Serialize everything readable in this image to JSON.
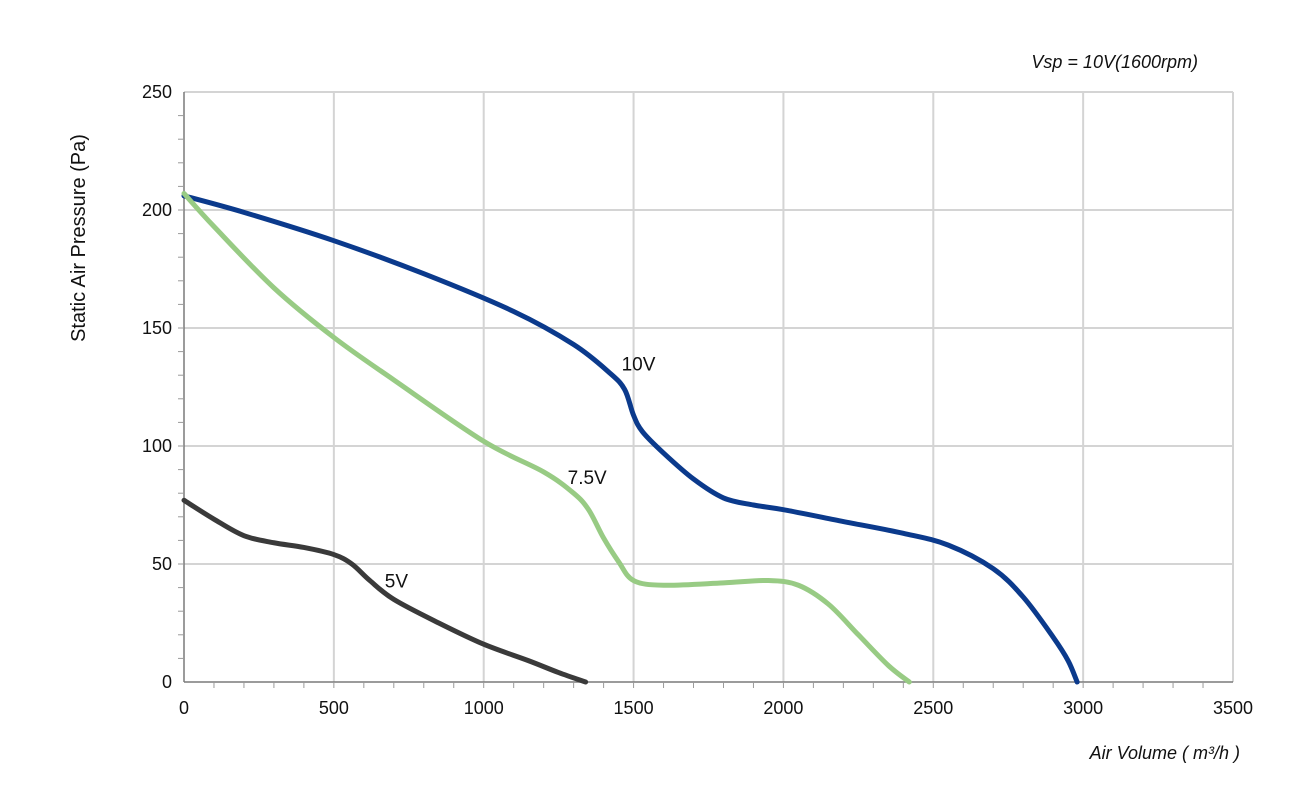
{
  "chart_data": {
    "type": "line",
    "annotation": "Vsp = 10V(1600rpm)",
    "xlabel": "Air Volume ( m³/h )",
    "ylabel": "Static Air Pressure  (Pa)",
    "xlim": [
      0,
      3500
    ],
    "ylim": [
      0,
      250
    ],
    "x_ticks": [
      0,
      500,
      1000,
      1500,
      2000,
      2500,
      3000,
      3500
    ],
    "y_ticks": [
      0,
      50,
      100,
      150,
      200,
      250
    ],
    "grid": true,
    "legend": "none",
    "series": [
      {
        "name": "10V",
        "color": "#0b3a8c",
        "x": [
          0,
          200,
          500,
          800,
          1100,
          1300,
          1420,
          1470,
          1500,
          1530,
          1600,
          1700,
          1800,
          1900,
          2000,
          2200,
          2400,
          2550,
          2700,
          2800,
          2900,
          2950,
          2980
        ],
        "y": [
          206,
          199,
          187,
          173,
          157,
          143,
          131,
          124,
          113,
          106,
          97,
          86,
          78,
          75,
          73,
          68,
          63,
          58,
          48,
          36,
          19,
          9,
          0
        ]
      },
      {
        "name": "7.5V",
        "color": "#98cb84",
        "x": [
          0,
          100,
          300,
          500,
          700,
          1000,
          1200,
          1300,
          1350,
          1400,
          1450,
          1500,
          1600,
          1800,
          1950,
          2050,
          2150,
          2250,
          2350,
          2420
        ],
        "y": [
          207,
          193,
          167,
          146,
          128,
          102,
          89,
          80,
          73,
          61,
          51,
          43,
          41,
          42,
          43,
          41,
          33,
          20,
          7,
          0
        ]
      },
      {
        "name": "5V",
        "color": "#3a3a3a",
        "x": [
          0,
          100,
          200,
          300,
          400,
          500,
          560,
          620,
          700,
          850,
          1000,
          1150,
          1250,
          1340
        ],
        "y": [
          77,
          69,
          62,
          59,
          57,
          54,
          50,
          43,
          35,
          25,
          16,
          9,
          4,
          0
        ]
      }
    ]
  }
}
